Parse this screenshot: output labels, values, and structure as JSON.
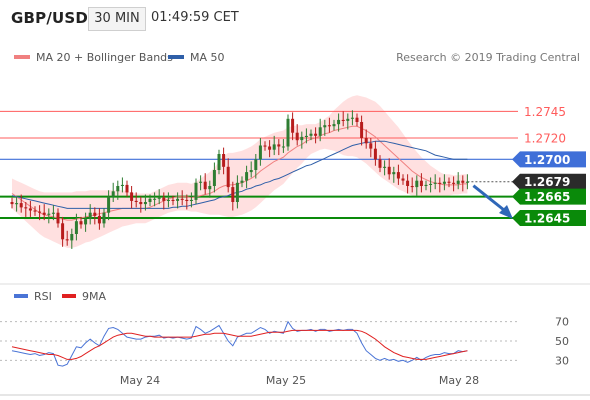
{
  "header": {
    "symbol": "GBP/USD",
    "timeframe": "30 MIN",
    "time": "01:49:59 CET"
  },
  "legend": {
    "bb_label": "MA 20 + Bollinger Bands",
    "ma50_label": "MA 50",
    "credit": "Research © 2019 Trading Central"
  },
  "rsi_legend": {
    "rsi_label": "RSI",
    "ma_label": "9MA"
  },
  "colors": {
    "up": "#2e7d32",
    "down": "#b71c1c",
    "blue_line": "#3f6fd8",
    "support": "#0a8a0a",
    "resistance": "#ff5c5c",
    "band_fill": "#ffd5d5",
    "current_label": "#2b2b2b",
    "arrow": "#2f67b8"
  },
  "chart_data": [
    {
      "type": "candlestick",
      "title": "GBP/USD",
      "x_ticks": [
        "May 24",
        "May 25",
        "May 28"
      ],
      "ylim": [
        1.2615,
        1.2765
      ],
      "levels": [
        {
          "label": "1.2745",
          "value": 1.2745,
          "kind": "resistance"
        },
        {
          "label": "1.2720",
          "value": 1.272,
          "kind": "resistance"
        },
        {
          "label": "1.2700",
          "value": 1.27,
          "kind": "pivot"
        },
        {
          "label": "1.2679",
          "value": 1.2679,
          "kind": "current"
        },
        {
          "label": "1.2665",
          "value": 1.2665,
          "kind": "support"
        },
        {
          "label": "1.2645",
          "value": 1.2645,
          "kind": "support"
        }
      ],
      "forecast": {
        "from": 1.2679,
        "to": 1.2645,
        "direction": "down"
      },
      "close": [
        1.2658,
        1.2659,
        1.2655,
        1.2654,
        1.2652,
        1.2651,
        1.265,
        1.2648,
        1.2649,
        1.265,
        1.264,
        1.2625,
        1.2624,
        1.263,
        1.2642,
        1.2639,
        1.2644,
        1.265,
        1.2647,
        1.264,
        1.265,
        1.2665,
        1.267,
        1.2675,
        1.2676,
        1.2669,
        1.2661,
        1.266,
        1.2658,
        1.266,
        1.2663,
        1.2663,
        1.2664,
        1.2661,
        1.2662,
        1.2661,
        1.2663,
        1.2662,
        1.2661,
        1.2662,
        1.2678,
        1.2679,
        1.2672,
        1.2675,
        1.269,
        1.2705,
        1.2693,
        1.2674,
        1.266,
        1.2678,
        1.268,
        1.2688,
        1.269,
        1.27,
        1.2713,
        1.2712,
        1.2709,
        1.2714,
        1.2712,
        1.2712,
        1.2738,
        1.2725,
        1.2718,
        1.2721,
        1.2722,
        1.2724,
        1.2722,
        1.273,
        1.2732,
        1.2731,
        1.2733,
        1.2737,
        1.2736,
        1.2738,
        1.2739,
        1.2735,
        1.272,
        1.2715,
        1.271,
        1.27,
        1.2692,
        1.2693,
        1.2686,
        1.2688,
        1.2682,
        1.268,
        1.2675,
        1.2674,
        1.268,
        1.2675,
        1.2676,
        1.2677,
        1.2678,
        1.2677,
        1.2679,
        1.2678,
        1.2677,
        1.268,
        1.2678,
        1.2679
      ],
      "ma20": [
        1.2668,
        1.2665,
        1.2662,
        1.2659,
        1.2656,
        1.2653,
        1.265,
        1.2648,
        1.2647,
        1.2646,
        1.2645,
        1.2644,
        1.2643,
        1.2643,
        1.2644,
        1.2645,
        1.2646,
        1.2647,
        1.2648,
        1.2649,
        1.265,
        1.2651,
        1.2652,
        1.2653,
        1.2654,
        1.2654,
        1.2654,
        1.2654,
        1.2654,
        1.2654,
        1.2655,
        1.2657,
        1.2659,
        1.2661,
        1.2663,
        1.2664,
        1.2665,
        1.2665,
        1.2665,
        1.2664,
        1.2665,
        1.2666,
        1.2667,
        1.2668,
        1.267,
        1.2673,
        1.2675,
        1.2676,
        1.2676,
        1.2677,
        1.2678,
        1.268,
        1.2682,
        1.2685,
        1.2689,
        1.2692,
        1.2695,
        1.2698,
        1.27,
        1.2702,
        1.2706,
        1.2709,
        1.2712,
        1.2714,
        1.2717,
        1.2719,
        1.272,
        1.2722,
        1.2724,
        1.2725,
        1.2727,
        1.2728,
        1.2729,
        1.273,
        1.2731,
        1.2731,
        1.2729,
        1.2727,
        1.2724,
        1.2721,
        1.2717,
        1.2713,
        1.2709,
        1.2705,
        1.2701,
        1.2697,
        1.2693,
        1.2689,
        1.2686,
        1.2683,
        1.2681,
        1.2679,
        1.2678,
        1.2677,
        1.2676,
        1.2676,
        1.2676,
        1.2676,
        1.2677,
        1.2677
      ],
      "ma50": [
        1.2666,
        1.2665,
        1.2664,
        1.2663,
        1.2662,
        1.2661,
        1.266,
        1.2659,
        1.2658,
        1.2657,
        1.2656,
        1.2655,
        1.2654,
        1.2654,
        1.2654,
        1.2654,
        1.2654,
        1.2654,
        1.2654,
        1.2654,
        1.2654,
        1.2654,
        1.2654,
        1.2654,
        1.2654,
        1.2654,
        1.2654,
        1.2654,
        1.2654,
        1.2654,
        1.2654,
        1.2654,
        1.2654,
        1.2654,
        1.2654,
        1.2655,
        1.2655,
        1.2656,
        1.2656,
        1.2657,
        1.2658,
        1.2659,
        1.266,
        1.2661,
        1.2662,
        1.2664,
        1.2665,
        1.2666,
        1.2668,
        1.2669,
        1.267,
        1.2672,
        1.2673,
        1.2675,
        1.2676,
        1.2678,
        1.2679,
        1.2681,
        1.2682,
        1.2684,
        1.2686,
        1.2688,
        1.269,
        1.2692,
        1.2694,
        1.2695,
        1.2697,
        1.2699,
        1.2701,
        1.2703,
        1.2705,
        1.2707,
        1.2709,
        1.2711,
        1.2713,
        1.2714,
        1.2715,
        1.2716,
        1.2716,
        1.2717,
        1.2717,
        1.2717,
        1.2716,
        1.2715,
        1.2714,
        1.2713,
        1.2712,
        1.2711,
        1.271,
        1.2709,
        1.2708,
        1.2706,
        1.2704,
        1.2703,
        1.2702,
        1.2701,
        1.27,
        1.27,
        1.27,
        1.27
      ],
      "band_width": [
        0.0014,
        0.0015,
        0.0016,
        0.0017,
        0.0018,
        0.0019,
        0.002,
        0.0021,
        0.0022,
        0.0023,
        0.0024,
        0.0025,
        0.0026,
        0.0026,
        0.0026,
        0.0025,
        0.0024,
        0.0024,
        0.0023,
        0.0022,
        0.0021,
        0.002,
        0.0019,
        0.0018,
        0.0017,
        0.0016,
        0.0015,
        0.0014,
        0.0014,
        0.0014,
        0.0013,
        0.0013,
        0.0013,
        0.0013,
        0.0013,
        0.0013,
        0.0013,
        0.0013,
        0.0013,
        0.0013,
        0.0014,
        0.0016,
        0.0018,
        0.002,
        0.0022,
        0.0025,
        0.0028,
        0.003,
        0.003,
        0.003,
        0.003,
        0.003,
        0.003,
        0.003,
        0.003,
        0.0029,
        0.0028,
        0.0027,
        0.0026,
        0.0025,
        0.0024,
        0.0022,
        0.002,
        0.0018,
        0.0016,
        0.0014,
        0.0013,
        0.0013,
        0.0014,
        0.0016,
        0.0019,
        0.0022,
        0.0025,
        0.0027,
        0.0028,
        0.0029,
        0.003,
        0.0031,
        0.0032,
        0.0033,
        0.0033,
        0.0032,
        0.0031,
        0.003,
        0.0029,
        0.0027,
        0.0025,
        0.0023,
        0.0021,
        0.0019,
        0.0017,
        0.0015,
        0.0013,
        0.0011,
        0.001,
        0.001,
        0.0009,
        0.0009,
        0.0009,
        0.0009
      ]
    },
    {
      "type": "line",
      "title": "RSI",
      "ylim": [
        20,
        80
      ],
      "y_ticks": [
        70,
        50,
        30
      ],
      "x_ticks": [
        "May 24",
        "May 25",
        "May 28"
      ],
      "series": [
        {
          "name": "RSI",
          "color": "#4a74d6",
          "values": [
            40,
            39,
            38,
            37,
            36,
            37,
            35,
            36,
            38,
            37,
            25,
            24,
            26,
            35,
            44,
            43,
            48,
            52,
            48,
            45,
            55,
            63,
            64,
            62,
            58,
            54,
            53,
            52,
            52,
            54,
            55,
            55,
            56,
            53,
            54,
            53,
            54,
            53,
            52,
            53,
            65,
            62,
            58,
            60,
            63,
            66,
            58,
            50,
            45,
            54,
            56,
            58,
            58,
            61,
            64,
            62,
            58,
            60,
            59,
            58,
            70,
            63,
            60,
            61,
            61,
            62,
            60,
            62,
            62,
            60,
            61,
            62,
            61,
            62,
            62,
            58,
            48,
            40,
            36,
            32,
            30,
            32,
            30,
            31,
            29,
            30,
            28,
            30,
            33,
            30,
            33,
            35,
            36,
            36,
            38,
            37,
            37,
            40,
            39,
            40
          ]
        },
        {
          "name": "9MA",
          "color": "#e02020",
          "values": [
            44,
            43,
            42,
            41,
            40,
            39,
            38,
            37,
            36,
            36,
            35,
            33,
            31,
            31,
            32,
            34,
            37,
            40,
            43,
            45,
            48,
            51,
            54,
            56,
            57,
            58,
            58,
            57,
            56,
            55,
            55,
            54,
            54,
            54,
            54,
            54,
            54,
            54,
            54,
            54,
            55,
            56,
            57,
            57,
            58,
            58,
            58,
            57,
            56,
            55,
            55,
            55,
            55,
            56,
            57,
            58,
            59,
            59,
            59,
            59,
            60,
            61,
            61,
            61,
            61,
            61,
            61,
            61,
            61,
            61,
            61,
            61,
            61,
            61,
            61,
            61,
            60,
            58,
            55,
            52,
            48,
            44,
            41,
            38,
            36,
            34,
            33,
            32,
            31,
            31,
            31,
            32,
            33,
            34,
            35,
            36,
            37,
            38,
            39,
            40
          ]
        }
      ]
    }
  ]
}
